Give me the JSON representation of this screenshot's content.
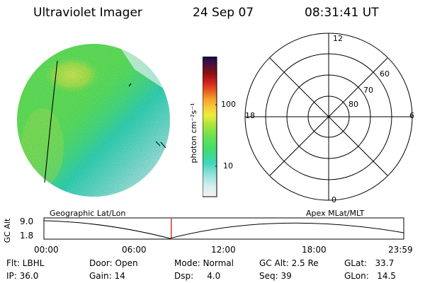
{
  "header": {
    "instrument": "Ultraviolet Imager",
    "date": "24 Sep 07",
    "time": "08:31:41 UT"
  },
  "colorbar": {
    "unit_label": "photon cm⁻²s⁻¹",
    "tick_100": "100",
    "tick_10": "10"
  },
  "polar_plot": {
    "mlt_12": "12",
    "mlt_18": "18",
    "mlt_6": "6",
    "mlt_0": "0",
    "lat_60": "60",
    "lat_70": "70",
    "lat_80": "80"
  },
  "orbit": {
    "left_label": "Geographic Lat/Lon",
    "right_label": "Apex MLat/MLT",
    "y_axis_label": "GC Alt",
    "y_max": "9.0",
    "y_min": "1.8",
    "x_ticks": [
      "00:00",
      "06:00",
      "12:00",
      "18:00",
      "23:59"
    ],
    "current_time_fraction": 0.354
  },
  "status": {
    "flt": "Flt: LBHL",
    "ip": "IP: 36.0",
    "door": "Door: Open",
    "gain": "Gain: 14",
    "mode": "Mode: Normal",
    "dsp": "Dsp:     4.0",
    "gc_alt": "GC Alt: 2.5 Re",
    "seq": "Seq: 39",
    "glat": "GLat:   33.7",
    "glon": "GLon:   14.5"
  },
  "colors": {
    "marker": "#cc0000",
    "green": "#5ce650",
    "cyan": "#39d6b4",
    "pale": "#d7ecec"
  }
}
